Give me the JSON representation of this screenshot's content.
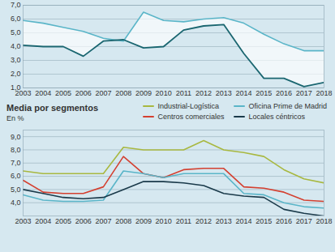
{
  "chart_data": [
    {
      "type": "line",
      "x": [
        2003,
        2004,
        2005,
        2006,
        2007,
        2008,
        2009,
        2010,
        2011,
        2012,
        2013,
        2014,
        2015,
        2016,
        2017,
        2018
      ],
      "series": [
        {
          "color": "#5ab5c8",
          "values": [
            5.9,
            5.7,
            5.4,
            5.1,
            4.6,
            4.4,
            6.5,
            5.9,
            5.8,
            6.0,
            6.1,
            5.7,
            4.9,
            4.2,
            3.7,
            3.7
          ]
        },
        {
          "color": "#1a6670",
          "values": [
            4.1,
            4.0,
            4.0,
            3.3,
            4.4,
            4.5,
            3.9,
            4.0,
            5.2,
            5.5,
            5.6,
            3.5,
            1.7,
            1.7,
            1.1,
            1.4
          ]
        }
      ],
      "xlim": [
        2003,
        2018
      ],
      "xticks": [
        2003,
        2004,
        2005,
        2006,
        2007,
        2008,
        2009,
        2010,
        2011,
        2012,
        2013,
        2014,
        2015,
        2016,
        2017,
        2018
      ],
      "ylim": [
        1.0,
        7.0
      ],
      "yticks": [
        {
          "value": 1.0,
          "label": "1,0"
        },
        {
          "value": 2.0,
          "label": "2,0"
        },
        {
          "value": 3.0,
          "label": "3,0"
        },
        {
          "value": 4.0,
          "label": "4,0"
        },
        {
          "value": 5.0,
          "label": "5,0"
        },
        {
          "value": 6.0,
          "label": "6,0"
        },
        {
          "value": 7.0,
          "label": "7,0"
        }
      ],
      "grid": true
    },
    {
      "type": "line",
      "title": "Media por segmentos",
      "subtitle": "En %",
      "x": [
        2003,
        2004,
        2005,
        2006,
        2007,
        2008,
        2009,
        2010,
        2011,
        2012,
        2013,
        2014,
        2015,
        2016,
        2017,
        2018
      ],
      "series": [
        {
          "name": "Industrial-Logística",
          "color": "#a8b840",
          "values": [
            6.4,
            6.2,
            6.2,
            6.2,
            6.2,
            8.2,
            8.0,
            8.0,
            8.0,
            8.7,
            8.0,
            7.8,
            7.5,
            6.5,
            5.8,
            5.5
          ]
        },
        {
          "name": "Centros comerciales",
          "color": "#d44030",
          "values": [
            5.7,
            4.8,
            4.7,
            4.7,
            5.2,
            7.5,
            6.2,
            5.9,
            6.5,
            6.6,
            6.6,
            5.2,
            5.1,
            4.8,
            4.2,
            4.1
          ]
        },
        {
          "name": "Oficina Prime de Madrid",
          "color": "#5ab5c8",
          "values": [
            4.6,
            4.2,
            4.1,
            4.1,
            4.2,
            6.4,
            6.2,
            5.9,
            6.2,
            6.2,
            6.2,
            4.7,
            4.6,
            4.0,
            3.7,
            3.6
          ]
        },
        {
          "name": "Locales céntricos",
          "color": "#1a3a4a",
          "values": [
            5.0,
            4.7,
            4.4,
            4.3,
            4.4,
            5.0,
            5.6,
            5.6,
            5.5,
            5.3,
            4.7,
            4.5,
            4.4,
            3.5,
            3.2,
            3.0
          ]
        }
      ],
      "xlim": [
        2003,
        2018
      ],
      "xticks": [
        2003,
        2004,
        2005,
        2006,
        2007,
        2008,
        2009,
        2010,
        2011,
        2012,
        2013,
        2014,
        2015,
        2016,
        2017,
        2018
      ],
      "ylim": [
        3.0,
        9.5
      ],
      "yticks": [
        {
          "value": 4.0,
          "label": "4,0"
        },
        {
          "value": 5.0,
          "label": "5,0"
        },
        {
          "value": 6.0,
          "label": "6,0"
        },
        {
          "value": 7.0,
          "label": "7,0"
        },
        {
          "value": 8.0,
          "label": "8,0"
        },
        {
          "value": 9.0,
          "label": "9,0"
        }
      ],
      "grid": true,
      "legend": "top"
    }
  ]
}
